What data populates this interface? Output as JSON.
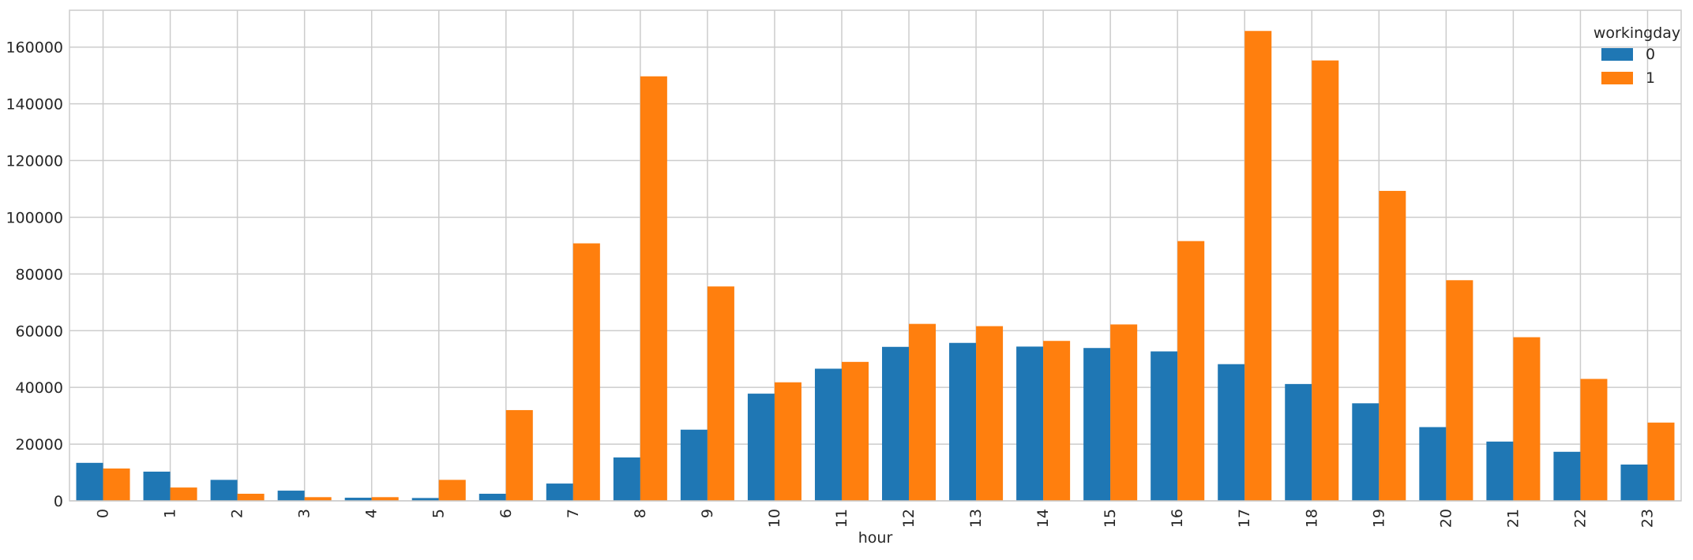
{
  "chart_data": {
    "type": "bar",
    "title": "",
    "xlabel": "hour",
    "ylabel": "",
    "categories": [
      "0",
      "1",
      "2",
      "3",
      "4",
      "5",
      "6",
      "7",
      "8",
      "9",
      "10",
      "11",
      "12",
      "13",
      "14",
      "15",
      "16",
      "17",
      "18",
      "19",
      "20",
      "21",
      "22",
      "23"
    ],
    "series": [
      {
        "name": "0",
        "color": "#1f77b4",
        "values": [
          13400,
          10300,
          7400,
          3600,
          1100,
          1000,
          2500,
          6100,
          15300,
          25100,
          37800,
          46600,
          54300,
          55700,
          54400,
          53900,
          52700,
          48200,
          41200,
          34400,
          26000,
          20900,
          17300,
          12800
        ]
      },
      {
        "name": "1",
        "color": "#ff7f0e",
        "values": [
          11400,
          4700,
          2500,
          1300,
          1300,
          7400,
          32000,
          90800,
          149700,
          75600,
          41800,
          49000,
          62400,
          61600,
          56400,
          62200,
          91600,
          165700,
          155300,
          109300,
          77800,
          57700,
          43000,
          27600
        ]
      }
    ],
    "ylim": [
      0,
      173000
    ],
    "yticks": [
      0,
      20000,
      40000,
      60000,
      80000,
      100000,
      120000,
      140000,
      160000
    ],
    "grid": true,
    "legend": {
      "title": "workingday",
      "placement": "top-right"
    }
  }
}
